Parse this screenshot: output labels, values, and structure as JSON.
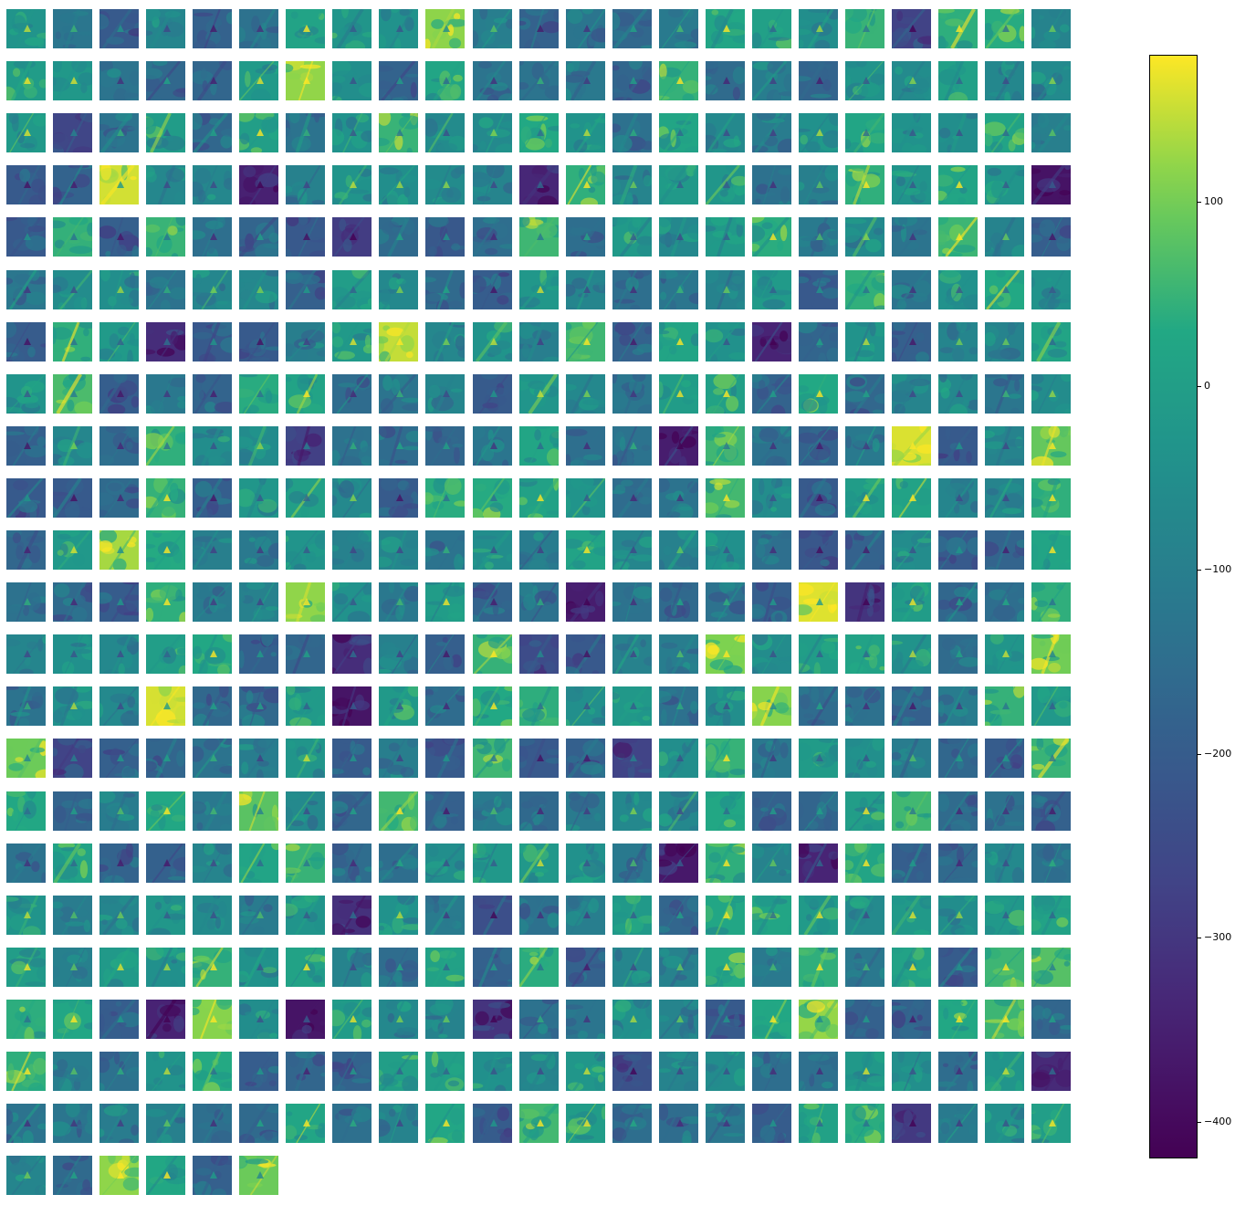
{
  "chart_data": {
    "type": "heatmap",
    "colormap": "viridis",
    "grid": {
      "columns": 23,
      "rows": 23,
      "panel_count": 512,
      "axes_visible": false
    },
    "colorbar": {
      "orientation": "vertical",
      "placement": "right",
      "vmin": -420,
      "vmax": 180,
      "ticks": [
        {
          "value": 100,
          "label": "100"
        },
        {
          "value": 0,
          "label": "0"
        },
        {
          "value": -100,
          "label": "−100"
        },
        {
          "value": -200,
          "label": "−200"
        },
        {
          "value": -300,
          "label": "−300"
        },
        {
          "value": -400,
          "label": "−400"
        }
      ]
    }
  }
}
